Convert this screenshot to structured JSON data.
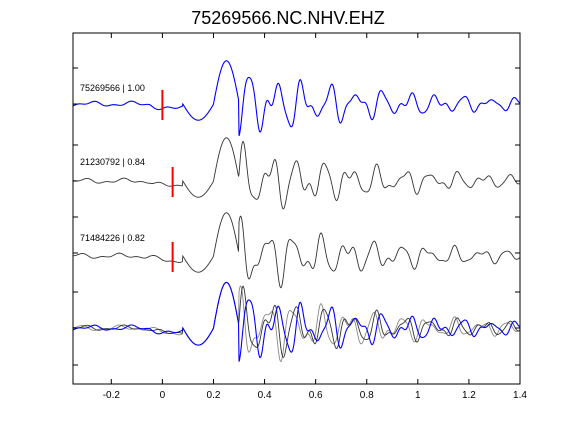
{
  "chart_data": {
    "type": "line",
    "title": "75269566.NC.NHV.EHZ",
    "xlabel": "",
    "ylabel": "",
    "xlim": [
      -0.35,
      1.4
    ],
    "x_ticks": [
      -0.2,
      0,
      0.2,
      0.4,
      0.6,
      0.8,
      1,
      1.2,
      1.4
    ],
    "x_tick_labels": [
      "-0.2",
      "0",
      "0.2",
      "0.4",
      "0.6",
      "0.8",
      "1",
      "1.2",
      "1.4"
    ],
    "grid": false,
    "colors": {
      "master": "#0000ff",
      "trace": "#333333",
      "overlay": "#888888",
      "pick": "#ff0000"
    },
    "traces": [
      {
        "label": "75269566 | 1.00",
        "event_id": "75269566",
        "correlation": 1.0,
        "pick_time": 0.0,
        "color": "#0000ff"
      },
      {
        "label": "21230792 | 0.84",
        "event_id": "21230792",
        "correlation": 0.84,
        "pick_time": 0.04,
        "color": "#333333"
      },
      {
        "label": "71484226 | 0.82",
        "event_id": "71484226",
        "correlation": 0.82,
        "pick_time": 0.04,
        "color": "#333333"
      }
    ],
    "overlay": {
      "description_visible": false
    }
  }
}
